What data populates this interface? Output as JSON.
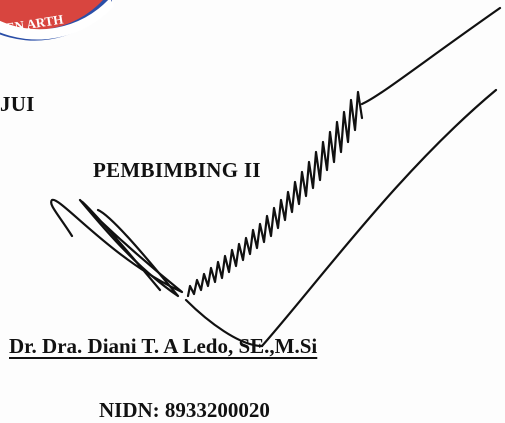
{
  "stamp": {
    "text_fragment": "EN ARTH",
    "outer_color": "#2b4fa8",
    "inner_color": "#d8453f"
  },
  "approval_fragment": "JUI",
  "supervisor": {
    "role": "PEMBIMBING II",
    "name": "Dr. Dra. Diani T. A Ledo, SE.,M.Si",
    "nidn": "NIDN: 8933200020"
  },
  "signature": {
    "ink_color": "#111111"
  }
}
